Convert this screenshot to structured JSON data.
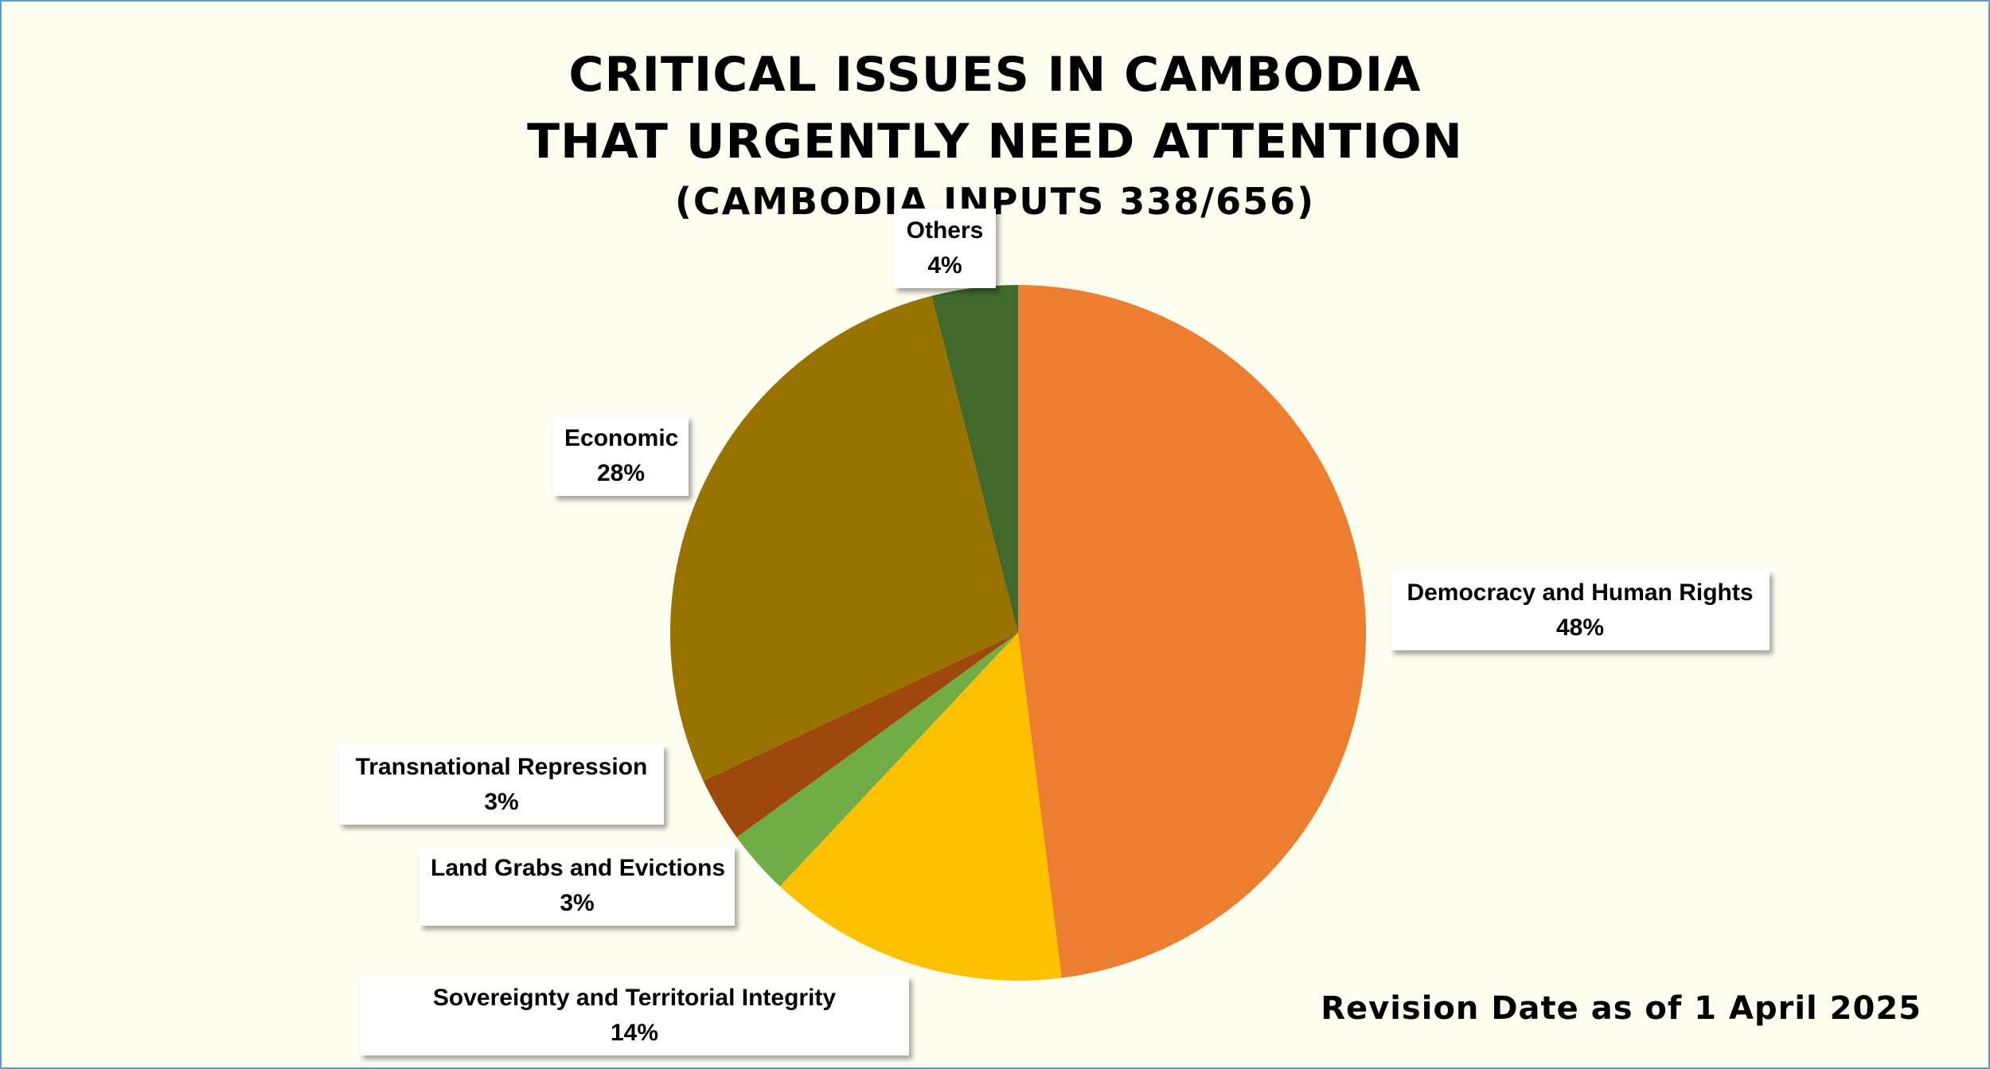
{
  "chart_data": {
    "type": "pie",
    "title": [
      "CRITICAL ISSUES IN CAMBODIA",
      "THAT URGENTLY NEED ATTENTION"
    ],
    "subtitle": "(CAMBODIA INPUTS 338/656)",
    "slices": [
      {
        "label": "Democracy and Human Rights",
        "value": 48,
        "value_label": "48%",
        "color": "#ed7d31"
      },
      {
        "label": "Sovereignty and Territorial Integrity",
        "value": 14,
        "value_label": "14%",
        "color": "#ffc000"
      },
      {
        "label": "Land Grabs and Evictions",
        "value": 3,
        "value_label": "3%",
        "color": "#70ad47"
      },
      {
        "label": "Transnational Repression",
        "value": 3,
        "value_label": "3%",
        "color": "#9e480e"
      },
      {
        "label": "Economic",
        "value": 28,
        "value_label": "28%",
        "color": "#997300"
      },
      {
        "label": "Others",
        "value": 4,
        "value_label": "4%",
        "color": "#43682b"
      }
    ],
    "start_angle": "12 o'clock",
    "direction": "clockwise"
  },
  "footer": {
    "revision": "Revision Date as of 1 April 2025"
  },
  "colors": {
    "background": "#fdfdf0",
    "border": "#5b9bd5"
  }
}
